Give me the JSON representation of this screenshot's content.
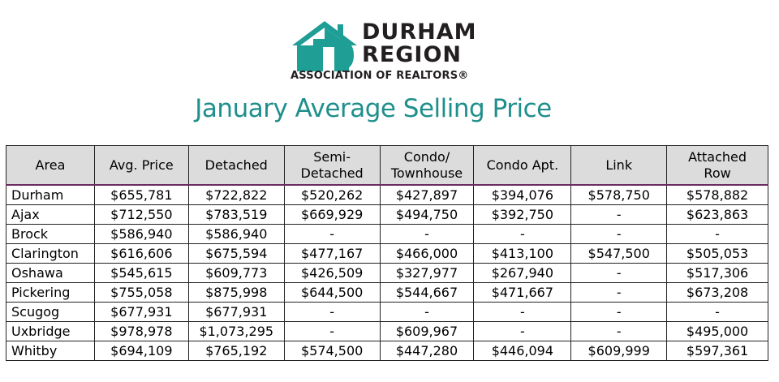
{
  "logo": {
    "line1": "DURHAM",
    "line2": "REGION",
    "subtitle": "ASSOCIATION OF REALTORS®",
    "brand_color": "#1f9e96"
  },
  "title": "January Average Selling Price",
  "table": {
    "headers": [
      [
        "Area"
      ],
      [
        "Avg. Price"
      ],
      [
        "Detached"
      ],
      [
        "Semi-",
        "Detached"
      ],
      [
        "Condo/",
        "Townhouse"
      ],
      [
        "Condo Apt."
      ],
      [
        "Link"
      ],
      [
        "Attached",
        "Row"
      ]
    ],
    "rows": [
      [
        "Durham",
        "$655,781",
        "$722,822",
        "$520,262",
        "$427,897",
        "$394,076",
        "$578,750",
        "$578,882"
      ],
      [
        "Ajax",
        "$712,550",
        "$783,519",
        "$669,929",
        "$494,750",
        "$392,750",
        "-",
        "$623,863"
      ],
      [
        "Brock",
        "$586,940",
        "$586,940",
        "-",
        "-",
        "-",
        "-",
        "-"
      ],
      [
        "Clarington",
        "$616,606",
        "$675,594",
        "$477,167",
        "$466,000",
        "$413,100",
        "$547,500",
        "$505,053"
      ],
      [
        "Oshawa",
        "$545,615",
        "$609,773",
        "$426,509",
        "$327,977",
        "$267,940",
        "-",
        "$517,306"
      ],
      [
        "Pickering",
        "$755,058",
        "$875,998",
        "$644,500",
        "$544,667",
        "$471,667",
        "-",
        "$673,208"
      ],
      [
        "Scugog",
        "$677,931",
        "$677,931",
        "-",
        "-",
        "-",
        "-",
        "-"
      ],
      [
        "Uxbridge",
        "$978,978",
        "$1,073,295",
        "-",
        "$609,967",
        "-",
        "-",
        "$495,000"
      ],
      [
        "Whitby",
        "$694,109",
        "$765,192",
        "$574,500",
        "$447,280",
        "$446,094",
        "$609,999",
        "$597,361"
      ]
    ]
  }
}
